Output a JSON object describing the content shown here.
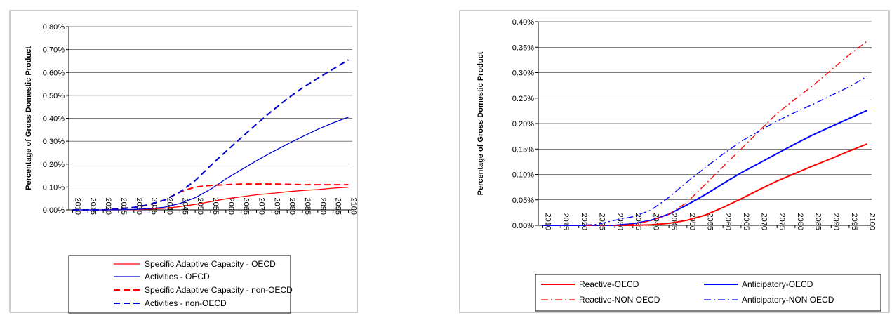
{
  "chart_data": [
    {
      "type": "line",
      "ylabel": "Percentage of Gross Domestic Product",
      "xlabel": "",
      "ylim": [
        0,
        0.008
      ],
      "y_ticks": [
        "0.00%",
        "0.10%",
        "0.20%",
        "0.30%",
        "0.40%",
        "0.50%",
        "0.60%",
        "0.70%",
        "0.80%"
      ],
      "x": [
        2010,
        2015,
        2020,
        2025,
        2030,
        2035,
        2040,
        2045,
        2050,
        2055,
        2060,
        2065,
        2070,
        2075,
        2080,
        2085,
        2090,
        2095,
        2100
      ],
      "x_ticks": [
        "2010",
        "2015",
        "2020",
        "2025",
        "2030",
        "2035",
        "2040",
        "2045",
        "2050",
        "2055",
        "2060",
        "2065",
        "2070",
        "2075",
        "2080",
        "2085",
        "2090",
        "2095",
        "2100"
      ],
      "grid": "horizontal",
      "legend_position": "bottom",
      "series": [
        {
          "name": "Specific Adaptive Capacity - OECD",
          "color": "#ff0000",
          "style": "solid",
          "width": "thin",
          "values": [
            0,
            0,
            0,
            0,
            1e-05,
            3e-05,
            7e-05,
            0.00014,
            0.00024,
            0.00036,
            0.00048,
            0.00057,
            0.00066,
            0.00072,
            0.00079,
            0.00085,
            0.00089,
            0.00095,
            0.00099
          ]
        },
        {
          "name": "Activities - OECD",
          "color": "#0000cc",
          "style": "solid",
          "width": "thin",
          "values": [
            0,
            0,
            0,
            0,
            2e-05,
            5e-05,
            0.00012,
            0.00028,
            0.00053,
            0.0009,
            0.00135,
            0.00175,
            0.00215,
            0.00252,
            0.00287,
            0.0032,
            0.00352,
            0.0038,
            0.00405
          ]
        },
        {
          "name": "Specific Adaptive Capacity - non-OECD",
          "color": "#ff0000",
          "style": "dashed",
          "width": "thick",
          "values": [
            0,
            0,
            0,
            4e-05,
            0.0001,
            0.00022,
            0.00043,
            0.00078,
            0.001,
            0.00107,
            0.0011,
            0.00113,
            0.00113,
            0.00113,
            0.00112,
            0.0011,
            0.0011,
            0.0011,
            0.0011
          ]
        },
        {
          "name": "Activities - non-OECD",
          "color": "#0000cc",
          "style": "dashed",
          "width": "thick",
          "values": [
            0,
            0,
            0,
            4e-05,
            0.00011,
            0.00023,
            0.00043,
            0.00078,
            0.00128,
            0.00193,
            0.00255,
            0.00315,
            0.00375,
            0.00432,
            0.00485,
            0.00533,
            0.00575,
            0.00615,
            0.00655
          ]
        }
      ]
    },
    {
      "type": "line",
      "ylabel": "Percentage of Gross Domestic Product",
      "xlabel": "",
      "ylim": [
        0,
        0.004
      ],
      "y_ticks": [
        "0.00%",
        "0.05%",
        "0.10%",
        "0.15%",
        "0.20%",
        "0.25%",
        "0.30%",
        "0.35%",
        "0.40%"
      ],
      "x": [
        2010,
        2015,
        2020,
        2025,
        2030,
        2035,
        2040,
        2045,
        2050,
        2055,
        2060,
        2065,
        2070,
        2075,
        2080,
        2085,
        2090,
        2095,
        2100
      ],
      "x_ticks": [
        "2010",
        "2015",
        "2020",
        "2025",
        "2030",
        "2035",
        "2040",
        "2045",
        "2050",
        "2055",
        "2060",
        "2065",
        "2070",
        "2075",
        "2080",
        "2085",
        "2090",
        "2095",
        "2100"
      ],
      "grid": "horizontal",
      "legend_position": "bottom",
      "series": [
        {
          "name": "Reactive-OECD",
          "color": "#ff0000",
          "style": "solid",
          "width": "thick",
          "values": [
            0,
            0,
            0,
            0,
            0,
            0,
            1e-05,
            4e-05,
            0.0001,
            0.0002,
            0.00035,
            0.00052,
            0.0007,
            0.00087,
            0.00102,
            0.00117,
            0.00131,
            0.00146,
            0.0016
          ]
        },
        {
          "name": "Anticipatory-OECD",
          "color": "#0000ff",
          "style": "solid",
          "width": "thick",
          "values": [
            0,
            0,
            0,
            0,
            0,
            3e-05,
            0.0001,
            0.00022,
            0.0004,
            0.0006,
            0.00082,
            0.00103,
            0.00122,
            0.00141,
            0.0016,
            0.00178,
            0.00194,
            0.0021,
            0.00226
          ]
        },
        {
          "name": "Reactive-NON OECD",
          "color": "#ff0000",
          "style": "dash-dot",
          "width": "thin",
          "values": [
            0,
            0,
            0,
            0,
            0,
            2e-05,
            9e-05,
            0.00022,
            0.00045,
            0.0008,
            0.00115,
            0.0015,
            0.00185,
            0.0022,
            0.00248,
            0.00275,
            0.00305,
            0.00335,
            0.00362
          ]
        },
        {
          "name": "Anticipatory-NON OECD",
          "color": "#0000ff",
          "style": "dash-dot",
          "width": "thin",
          "values": [
            0,
            0,
            0,
            2e-05,
            0.0001,
            0.00017,
            0.0003,
            0.00055,
            0.00085,
            0.00113,
            0.0014,
            0.00165,
            0.00185,
            0.00205,
            0.00222,
            0.00238,
            0.00255,
            0.00272,
            0.00293
          ]
        }
      ]
    }
  ]
}
